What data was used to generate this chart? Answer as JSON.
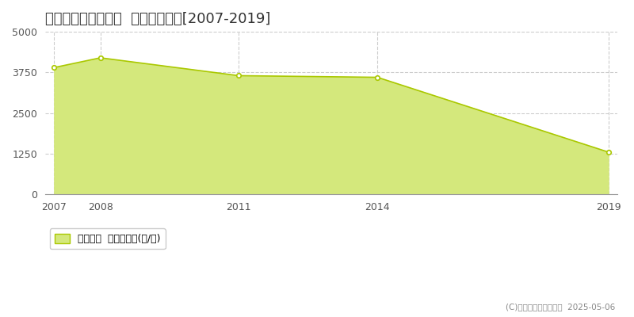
{
  "title": "多気郡多気町四疋田  農地価格推移[2007-2019]",
  "years": [
    2007,
    2008,
    2011,
    2014,
    2019
  ],
  "values": [
    3900,
    4200,
    3650,
    3600,
    1300
  ],
  "line_color": "#aac800",
  "fill_color": "#d4e87c",
  "marker_color": "#ffffff",
  "marker_edge_color": "#aac800",
  "ylim": [
    0,
    5000
  ],
  "yticks": [
    0,
    1250,
    2500,
    3750,
    5000
  ],
  "xticks": [
    2007,
    2008,
    2011,
    2014,
    2019
  ],
  "grid_color": "#cccccc",
  "grid_style": "--",
  "background_color": "#ffffff",
  "legend_label": "農地価格  平均坪単価(円/坪)",
  "copyright_text": "(C)土地価格ドットコム  2025-05-06",
  "title_fontsize": 13,
  "axis_fontsize": 9,
  "legend_fontsize": 9
}
